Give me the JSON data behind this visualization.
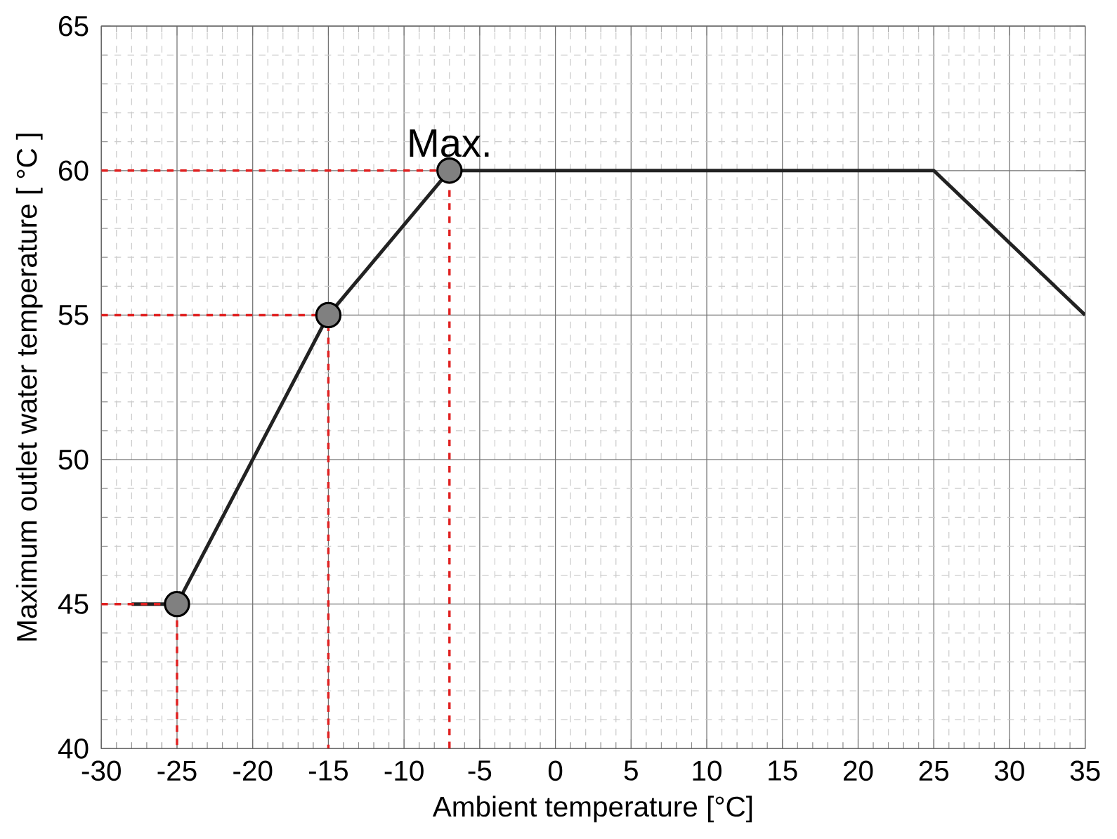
{
  "chart_data": {
    "type": "line",
    "xlabel": "Ambient temperature [°C]",
    "ylabel": "Maximum outlet water temperature [ °C ]",
    "xlim": [
      -30,
      35
    ],
    "ylim": [
      40,
      65
    ],
    "xticks": [
      -30,
      -25,
      -20,
      -15,
      -10,
      -5,
      0,
      5,
      10,
      15,
      20,
      25,
      30,
      35
    ],
    "yticks": [
      40,
      45,
      50,
      55,
      60,
      65
    ],
    "grid": true,
    "annotations": [
      {
        "text": "Max.",
        "x": -7,
        "y": 60
      }
    ],
    "series": [
      {
        "color": "#222222",
        "line_style": "solid",
        "marker": "none",
        "x": [
          -28,
          -25,
          -15,
          -7,
          25,
          35
        ],
        "values": [
          45,
          45,
          55,
          60,
          60,
          55
        ]
      },
      {
        "color": "#e02020",
        "line_style": "dashed",
        "marker": "none",
        "x": [
          -30,
          -25,
          -25
        ],
        "values": [
          45,
          45,
          40
        ]
      },
      {
        "color": "#e02020",
        "line_style": "dashed",
        "marker": "none",
        "x": [
          -30,
          -15,
          -15
        ],
        "values": [
          55,
          55,
          40
        ]
      },
      {
        "color": "#e02020",
        "line_style": "dashed",
        "marker": "none",
        "x": [
          -30,
          -7,
          -7
        ],
        "values": [
          60,
          60,
          40
        ]
      },
      {
        "type": "scatter",
        "color": "#808080",
        "marker": "circle",
        "x": [
          -25,
          -15,
          -7
        ],
        "values": [
          45,
          55,
          60
        ]
      }
    ]
  }
}
